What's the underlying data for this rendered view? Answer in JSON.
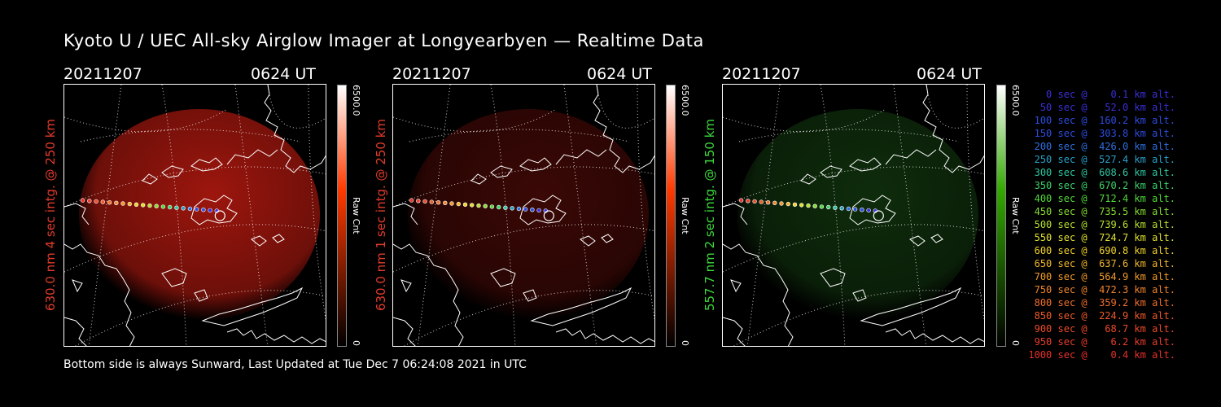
{
  "title": "Kyoto U / UEC All-sky Airglow Imager at Longyearbyen — Realtime Data",
  "footer": "Bottom side is always Sunward, Last Updated at Tue Dec  7 06:24:08 2021 in UTC",
  "panels": [
    {
      "date": "20211207",
      "time": "0624 UT",
      "label": "630.0 nm 4 sec intg. @ 250 km",
      "label_color": "#e23b2a",
      "cbar_max": "6500.0",
      "cbar_unit": "Raw Cnt",
      "cbar_min": "0",
      "cbar_color": "#ff3a00",
      "glow_color": "#b81a10",
      "glow_level": 0.85
    },
    {
      "date": "20211207",
      "time": "0624 UT",
      "label": "630.0 nm 1 sec intg. @ 250 km",
      "label_color": "#e23b2a",
      "cbar_max": "6500.0",
      "cbar_unit": "Raw Cnt",
      "cbar_min": "0",
      "cbar_color": "#ff3a00",
      "glow_color": "#6a0f0a",
      "glow_level": 0.55
    },
    {
      "date": "20211207",
      "time": "0624 UT",
      "label": "557.7 nm 2 sec intg. @ 150 km",
      "label_color": "#3cd93c",
      "cbar_max": "6500.0",
      "cbar_unit": "Raw Cnt",
      "cbar_min": "0",
      "cbar_color": "#33aa00",
      "glow_color": "#184a14",
      "glow_level": 0.6
    }
  ],
  "legend": [
    {
      "text": "   0 sec @    0.1 km alt.",
      "color": "#3a2fd8"
    },
    {
      "text": "  50 sec @   52.0 km alt.",
      "color": "#3a2fd8"
    },
    {
      "text": " 100 sec @  160.2 km alt.",
      "color": "#2c4ce0"
    },
    {
      "text": " 150 sec @  303.8 km alt.",
      "color": "#2c4ce0"
    },
    {
      "text": " 200 sec @  426.0 km alt.",
      "color": "#2f6fe0"
    },
    {
      "text": " 250 sec @  527.4 km alt.",
      "color": "#2a9fc8"
    },
    {
      "text": " 300 sec @  608.6 km alt.",
      "color": "#2fc6a0"
    },
    {
      "text": " 350 sec @  670.2 km alt.",
      "color": "#3ed26a"
    },
    {
      "text": " 400 sec @  712.4 km alt.",
      "color": "#52d83a"
    },
    {
      "text": " 450 sec @  735.5 km alt.",
      "color": "#86dc34"
    },
    {
      "text": " 500 sec @  739.6 km alt.",
      "color": "#b6e030"
    },
    {
      "text": " 550 sec @  724.7 km alt.",
      "color": "#dfe030"
    },
    {
      "text": " 600 sec @  690.8 km alt.",
      "color": "#f0d22c"
    },
    {
      "text": " 650 sec @  637.6 km alt.",
      "color": "#f2b62a"
    },
    {
      "text": " 700 sec @  564.9 km alt.",
      "color": "#f29a2a"
    },
    {
      "text": " 750 sec @  472.3 km alt.",
      "color": "#f0842a"
    },
    {
      "text": " 800 sec @  359.2 km alt.",
      "color": "#f06e2a"
    },
    {
      "text": " 850 sec @  224.9 km alt.",
      "color": "#ee5a2a"
    },
    {
      "text": " 900 sec @   68.7 km alt.",
      "color": "#ec4a2a"
    },
    {
      "text": " 950 sec @    6.2 km alt.",
      "color": "#ea3c2a"
    },
    {
      "text": "1000 sec @    0.4 km alt.",
      "color": "#e8302a"
    }
  ]
}
